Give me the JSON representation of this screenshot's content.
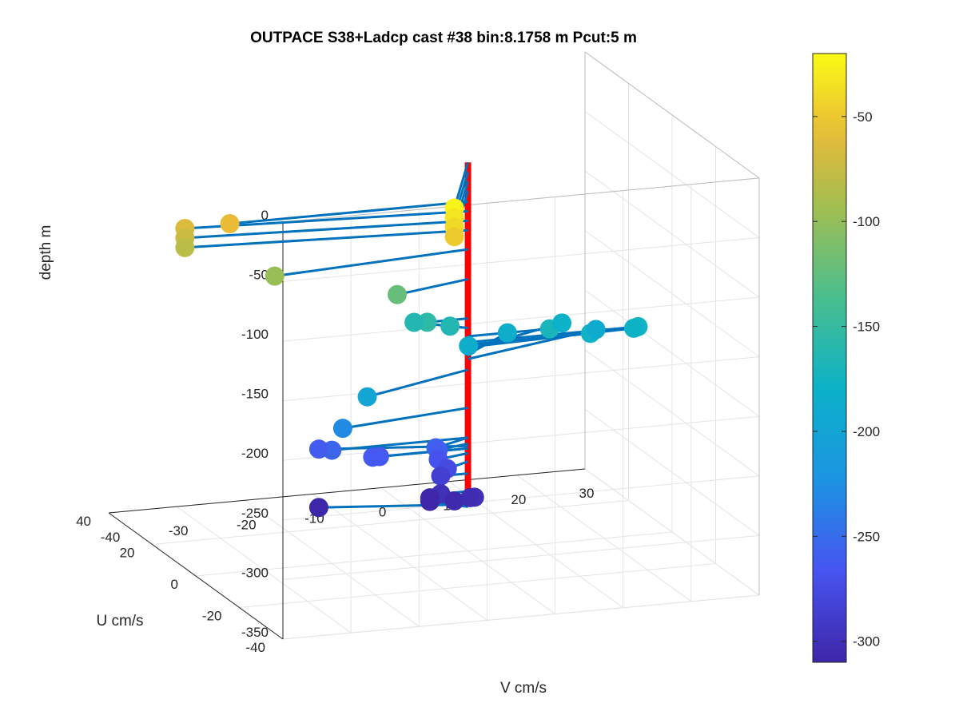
{
  "chart_data": {
    "type": "scatter",
    "subtype": "3d-stick-vectors",
    "title": "OUTPACE S38+Ladcp cast #38 bin:8.1758 m  Pcut:5 m",
    "xlabel": "U cm/s",
    "ylabel": "V cm/s",
    "zlabel": "depth m",
    "xlim": [
      -40,
      40
    ],
    "ylim": [
      -40,
      30
    ],
    "zlim": [
      -350,
      0
    ],
    "xticks": [
      "-40",
      "-20",
      "0",
      "20",
      "40"
    ],
    "yticks": [
      "-40",
      "-30",
      "-20",
      "-10",
      "0",
      "10",
      "20",
      "30"
    ],
    "zticks": [
      "0",
      "-50",
      "-100",
      "-150",
      "-200",
      "-250",
      "-300",
      "-350"
    ],
    "colorbar": {
      "range": [
        -310,
        -20
      ],
      "ticks": [
        "-50",
        "-100",
        "-150",
        "-200",
        "-250",
        "-300"
      ],
      "colormap": "parula"
    },
    "grid": true,
    "stick_color": "#0072BD",
    "axis_line_color": "#FF0000",
    "points": [
      {
        "depth": -24,
        "u": -25,
        "v": -10
      },
      {
        "depth": -32,
        "u": -25,
        "v": -10
      },
      {
        "depth": -40,
        "u": -25,
        "v": -10
      },
      {
        "depth": -48,
        "u": -25,
        "v": -10
      },
      {
        "depth": -57,
        "u": 0,
        "v": -35
      },
      {
        "depth": -65,
        "u": 5,
        "v": -40
      },
      {
        "depth": -73,
        "u": 5,
        "v": -40
      },
      {
        "depth": -81,
        "u": 5,
        "v": -40
      },
      {
        "depth": -97,
        "u": -5,
        "v": -30
      },
      {
        "depth": -122,
        "u": -5,
        "v": -12
      },
      {
        "depth": -155,
        "u": 0,
        "v": -6
      },
      {
        "depth": -163,
        "u": 6,
        "v": -6
      },
      {
        "depth": -163,
        "u": 2,
        "v": -2
      },
      {
        "depth": -170,
        "u": 0,
        "v": 12
      },
      {
        "depth": -175,
        "u": 0,
        "v": 25
      },
      {
        "depth": -177,
        "u": 0,
        "v": 18
      },
      {
        "depth": -179,
        "u": 2,
        "v": 25
      },
      {
        "depth": -181,
        "u": 10,
        "v": 17
      },
      {
        "depth": -185,
        "u": 10,
        "v": 9
      },
      {
        "depth": -187,
        "u": 6,
        "v": 2
      },
      {
        "depth": -189,
        "u": 10,
        "v": 22
      },
      {
        "depth": -198,
        "u": -10,
        "v": -18
      },
      {
        "depth": -230,
        "u": -5,
        "v": -20
      },
      {
        "depth": -255,
        "u": 0,
        "v": -20
      },
      {
        "depth": -262,
        "u": 6,
        "v": -20
      },
      {
        "depth": -264,
        "u": 0,
        "v": -13
      },
      {
        "depth": -264,
        "u": 0,
        "v": -14
      },
      {
        "depth": -255,
        "u": -4,
        "v": -6
      },
      {
        "depth": -260,
        "u": -2,
        "v": -5
      },
      {
        "depth": -268,
        "u": -2,
        "v": -5
      },
      {
        "depth": -275,
        "u": -3,
        "v": -4
      },
      {
        "depth": -285,
        "u": 0,
        "v": -4
      },
      {
        "depth": -300,
        "u": 0,
        "v": -4
      },
      {
        "depth": -307,
        "u": 0,
        "v": -2
      },
      {
        "depth": -301,
        "u": -3,
        "v": 0
      },
      {
        "depth": -304,
        "u": -1,
        "v": 0
      },
      {
        "depth": -310,
        "u": 5,
        "v": -4
      },
      {
        "depth": -313,
        "u": 5,
        "v": -4
      },
      {
        "depth": -311,
        "u": 6,
        "v": -20
      }
    ]
  }
}
